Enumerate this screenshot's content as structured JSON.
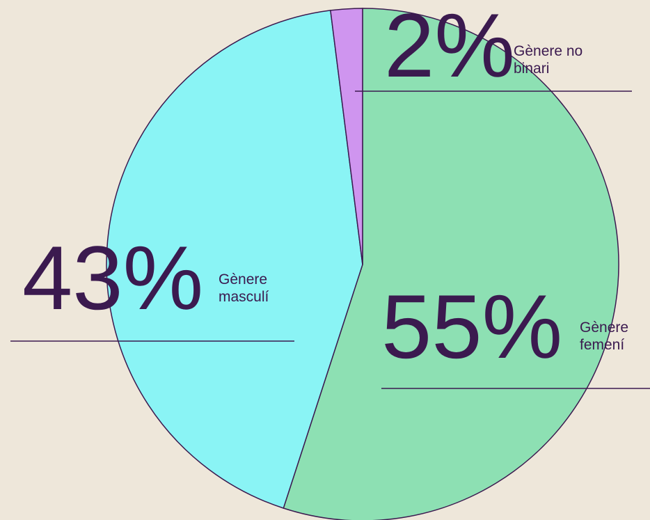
{
  "chart_data": {
    "type": "pie",
    "categories": [
      "Gènere femení",
      "Gènere masculí",
      "Gènere no binari"
    ],
    "values": [
      55,
      43,
      2
    ],
    "value_labels": [
      "55%",
      "43%",
      "2%"
    ],
    "colors": [
      "#8de0b3",
      "#8af4f5",
      "#cf95ef"
    ]
  }
}
